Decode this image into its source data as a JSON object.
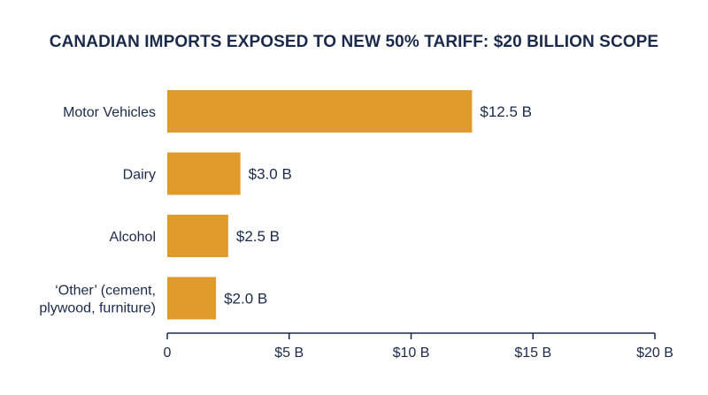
{
  "chart_data": {
    "type": "bar",
    "orientation": "horizontal",
    "title": "CANADIAN IMPORTS EXPOSED TO NEW 50% TARIFF: $20 BILLION SCOPE",
    "categories": [
      [
        "Motor Vehicles"
      ],
      [
        "Dairy"
      ],
      [
        "Alcohol"
      ],
      [
        "‘Other’ (cement,",
        "plywood, furniture)"
      ]
    ],
    "values": [
      12.5,
      3.0,
      2.5,
      2.0
    ],
    "value_labels": [
      "$12.5 B",
      "$3.0 B",
      "$2.5 B",
      "$2.0 B"
    ],
    "xlabel": "",
    "ylabel": "",
    "xlim": [
      0,
      20
    ],
    "ticks": [
      0,
      5,
      10,
      15,
      20
    ],
    "tick_labels": [
      "0",
      "$5 B",
      "$10 B",
      "$15 B",
      "$20 B"
    ],
    "grid": false,
    "bar_color": "#e19a2c",
    "text_color": "#1b2a4a",
    "axis_color": "#1b2a4a"
  }
}
